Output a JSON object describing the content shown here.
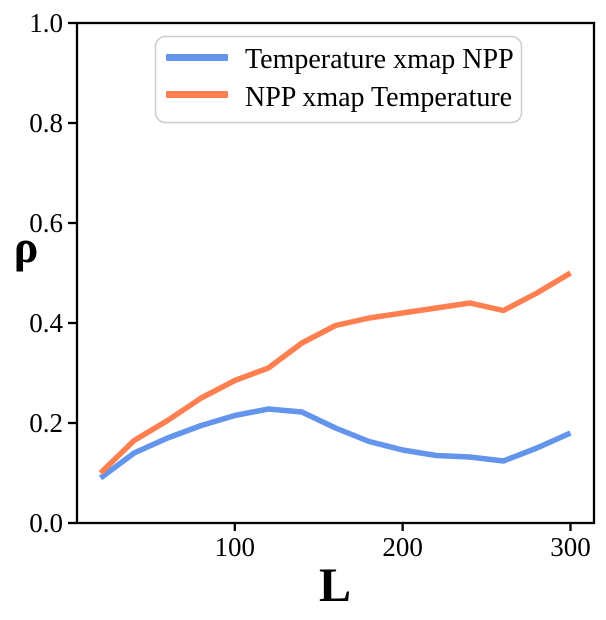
{
  "chart_data": {
    "type": "line",
    "title": "",
    "xlabel": "L",
    "ylabel": "ρ",
    "xlim": [
      6,
      314
    ],
    "ylim": [
      0.0,
      1.0
    ],
    "xticks": [
      100,
      200,
      300
    ],
    "xtick_labels": [
      "100",
      "200",
      "300"
    ],
    "yticks": [
      0.0,
      0.2,
      0.4,
      0.6,
      0.8,
      1.0
    ],
    "ytick_labels": [
      "0.0",
      "0.2",
      "0.4",
      "0.6",
      "0.8",
      "1.0"
    ],
    "grid": false,
    "legend_position": "upper center",
    "axis_color": "#000000",
    "x": [
      20,
      40,
      60,
      80,
      100,
      120,
      140,
      160,
      180,
      200,
      220,
      240,
      260,
      280,
      300
    ],
    "series": [
      {
        "name": "Temperature xmap NPP",
        "color": "#6495ED",
        "values": [
          0.09,
          0.14,
          0.17,
          0.195,
          0.215,
          0.228,
          0.222,
          0.19,
          0.163,
          0.146,
          0.135,
          0.132,
          0.124,
          0.15,
          0.18
        ]
      },
      {
        "name": "NPP xmap Temperature",
        "color": "#FF7F50",
        "values": [
          0.1,
          0.165,
          0.205,
          0.25,
          0.285,
          0.31,
          0.36,
          0.395,
          0.41,
          0.42,
          0.43,
          0.44,
          0.425,
          0.46,
          0.5
        ]
      }
    ]
  }
}
